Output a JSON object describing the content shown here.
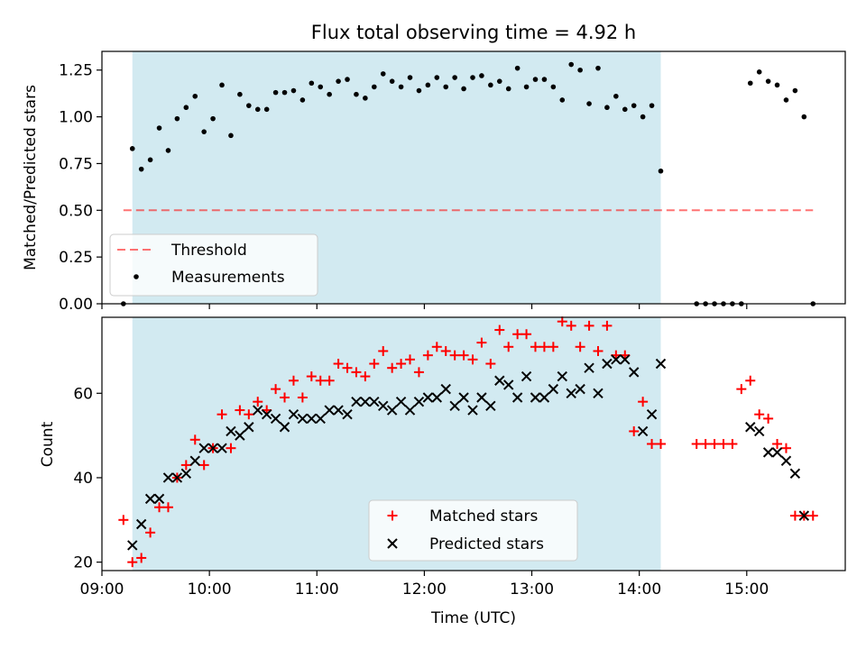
{
  "figure": {
    "title": "Flux total observing time = 4.92 h",
    "xlabel": "Time (UTC)"
  },
  "colors": {
    "shade": "#add8e6",
    "threshold": "#ff0000",
    "measurement": "#000000",
    "matched": "#ff0000",
    "predicted": "#000000"
  },
  "chart_data": [
    {
      "type": "scatter",
      "panel": "top",
      "ylabel": "Matched/Predicted stars",
      "xlim": [
        "09:00",
        "15:55"
      ],
      "ylim": [
        0,
        1.35
      ],
      "x_ticks": [
        "09:00",
        "10:00",
        "11:00",
        "12:00",
        "13:00",
        "14:00",
        "15:00"
      ],
      "y_ticks": [
        "0.00",
        "0.25",
        "0.50",
        "0.75",
        "1.00",
        "1.25"
      ],
      "shaded_interval": [
        "09:17",
        "14:12"
      ],
      "threshold": {
        "name": "Threshold",
        "value": 0.5,
        "x_range": [
          "09:12",
          "15:37"
        ]
      },
      "legend": [
        "Threshold",
        "Measurements"
      ],
      "legend_position": "lower-left",
      "series": [
        {
          "name": "Measurements",
          "x": [
            "09:12",
            "09:17",
            "09:22",
            "09:27",
            "09:32",
            "09:37",
            "09:42",
            "09:47",
            "09:52",
            "09:57",
            "10:02",
            "10:07",
            "10:12",
            "10:17",
            "10:22",
            "10:27",
            "10:32",
            "10:37",
            "10:42",
            "10:47",
            "10:52",
            "10:57",
            "11:02",
            "11:07",
            "11:12",
            "11:17",
            "11:22",
            "11:27",
            "11:32",
            "11:37",
            "11:42",
            "11:47",
            "11:52",
            "11:57",
            "12:02",
            "12:07",
            "12:12",
            "12:17",
            "12:22",
            "12:27",
            "12:32",
            "12:37",
            "12:42",
            "12:47",
            "12:52",
            "12:57",
            "13:02",
            "13:07",
            "13:12",
            "13:17",
            "13:22",
            "13:27",
            "13:32",
            "13:37",
            "13:42",
            "13:47",
            "13:52",
            "13:57",
            "14:02",
            "14:07",
            "14:12",
            "14:32",
            "14:37",
            "14:42",
            "14:47",
            "14:52",
            "14:57",
            "15:02",
            "15:07",
            "15:12",
            "15:17",
            "15:22",
            "15:27",
            "15:32",
            "15:37"
          ],
          "y": [
            0.0,
            0.83,
            0.72,
            0.77,
            0.94,
            0.82,
            0.99,
            1.05,
            1.11,
            0.92,
            0.99,
            1.17,
            0.9,
            1.12,
            1.06,
            1.04,
            1.04,
            1.13,
            1.13,
            1.14,
            1.09,
            1.18,
            1.16,
            1.12,
            1.19,
            1.2,
            1.12,
            1.1,
            1.16,
            1.23,
            1.19,
            1.16,
            1.21,
            1.14,
            1.17,
            1.21,
            1.16,
            1.21,
            1.15,
            1.21,
            1.22,
            1.17,
            1.19,
            1.15,
            1.26,
            1.16,
            1.2,
            1.2,
            1.16,
            1.09,
            1.28,
            1.25,
            1.07,
            1.26,
            1.05,
            1.11,
            1.04,
            1.06,
            1.0,
            1.06,
            0.71,
            0.0,
            0.0,
            0.0,
            0.0,
            0.0,
            0.0,
            1.18,
            1.24,
            1.19,
            1.17,
            1.09,
            1.14,
            1.0,
            0.0
          ]
        }
      ]
    },
    {
      "type": "scatter",
      "panel": "bottom",
      "ylabel": "Count",
      "xlabel": "Time (UTC)",
      "xlim": [
        "09:00",
        "15:55"
      ],
      "ylim": [
        18,
        78
      ],
      "x_ticks": [
        "09:00",
        "10:00",
        "11:00",
        "12:00",
        "13:00",
        "14:00",
        "15:00"
      ],
      "y_ticks": [
        "20",
        "40",
        "60"
      ],
      "shaded_interval": [
        "09:17",
        "14:12"
      ],
      "legend": [
        "Matched stars",
        "Predicted stars"
      ],
      "legend_position": "lower-center",
      "series": [
        {
          "name": "Matched stars",
          "marker": "plus",
          "x": [
            "09:12",
            "09:17",
            "09:22",
            "09:27",
            "09:32",
            "09:37",
            "09:42",
            "09:47",
            "09:52",
            "09:57",
            "10:02",
            "10:07",
            "10:12",
            "10:17",
            "10:22",
            "10:27",
            "10:32",
            "10:37",
            "10:42",
            "10:47",
            "10:52",
            "10:57",
            "11:02",
            "11:07",
            "11:12",
            "11:17",
            "11:22",
            "11:27",
            "11:32",
            "11:37",
            "11:42",
            "11:47",
            "11:52",
            "11:57",
            "12:02",
            "12:07",
            "12:12",
            "12:17",
            "12:22",
            "12:27",
            "12:32",
            "12:37",
            "12:42",
            "12:47",
            "12:52",
            "12:57",
            "13:02",
            "13:07",
            "13:12",
            "13:17",
            "13:22",
            "13:27",
            "13:32",
            "13:37",
            "13:42",
            "13:47",
            "13:52",
            "13:57",
            "14:02",
            "14:07",
            "14:12",
            "14:32",
            "14:37",
            "14:42",
            "14:47",
            "14:52",
            "14:57",
            "15:02",
            "15:07",
            "15:12",
            "15:17",
            "15:22",
            "15:27",
            "15:32",
            "15:37"
          ],
          "y": [
            30,
            20,
            21,
            27,
            33,
            33,
            40,
            43,
            49,
            43,
            47,
            55,
            47,
            56,
            55,
            58,
            56,
            61,
            59,
            63,
            59,
            64,
            63,
            63,
            67,
            66,
            65,
            64,
            67,
            70,
            66,
            67,
            68,
            65,
            69,
            71,
            70,
            69,
            69,
            68,
            72,
            67,
            75,
            71,
            74,
            74,
            71,
            71,
            71,
            77,
            76,
            71,
            76,
            70,
            76,
            69,
            69,
            51,
            58,
            48,
            48,
            48,
            48,
            48,
            48,
            48,
            61,
            63,
            55,
            54,
            48,
            47,
            31,
            31,
            31
          ]
        },
        {
          "name": "Predicted stars",
          "marker": "x",
          "x": [
            "09:17",
            "09:22",
            "09:27",
            "09:32",
            "09:37",
            "09:42",
            "09:47",
            "09:52",
            "09:57",
            "10:02",
            "10:07",
            "10:12",
            "10:17",
            "10:22",
            "10:27",
            "10:32",
            "10:37",
            "10:42",
            "10:47",
            "10:52",
            "10:57",
            "11:02",
            "11:07",
            "11:12",
            "11:17",
            "11:22",
            "11:27",
            "11:32",
            "11:37",
            "11:42",
            "11:47",
            "11:52",
            "11:57",
            "12:02",
            "12:07",
            "12:12",
            "12:17",
            "12:22",
            "12:27",
            "12:32",
            "12:37",
            "12:42",
            "12:47",
            "12:52",
            "12:57",
            "13:02",
            "13:07",
            "13:12",
            "13:17",
            "13:22",
            "13:27",
            "13:32",
            "13:37",
            "13:42",
            "13:47",
            "13:52",
            "13:57",
            "14:02",
            "14:07",
            "14:12",
            "15:02",
            "15:07",
            "15:12",
            "15:17",
            "15:22",
            "15:27",
            "15:32"
          ],
          "y": [
            24,
            29,
            35,
            35,
            40,
            40,
            41,
            44,
            47,
            47,
            47,
            51,
            50,
            52,
            56,
            55,
            54,
            52,
            55,
            54,
            54,
            54,
            56,
            56,
            55,
            58,
            58,
            58,
            57,
            56,
            58,
            56,
            58,
            59,
            59,
            61,
            57,
            59,
            56,
            59,
            57,
            63,
            62,
            59,
            64,
            59,
            59,
            61,
            64,
            60,
            61,
            66,
            60,
            67,
            68,
            68,
            65,
            51,
            55,
            67,
            52,
            51,
            46,
            46,
            44,
            41,
            31
          ]
        }
      ]
    }
  ]
}
